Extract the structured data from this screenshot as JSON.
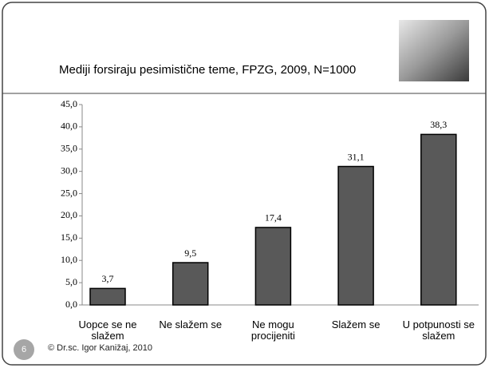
{
  "chart_data": {
    "type": "bar",
    "title": "Mediji forsiraju pesimistične teme, FPZG, 2009, N=1000",
    "categories": [
      "Uopce se ne slažem",
      "Ne slažem se",
      "Ne mogu procijeniti",
      "Slažem se",
      "U potpunosti se slažem"
    ],
    "values": [
      3.7,
      9.5,
      17.4,
      31.1,
      38.3
    ],
    "value_labels": [
      "3,7",
      "9,5",
      "17,4",
      "31,1",
      "38,3"
    ],
    "color": "#595959",
    "ylim": [
      0,
      45
    ],
    "yticks": [
      {
        "value": 0,
        "label": "0,0"
      },
      {
        "value": 5,
        "label": "5,0"
      },
      {
        "value": 10,
        "label": "10,0"
      },
      {
        "value": 15,
        "label": "15,0"
      },
      {
        "value": 20,
        "label": "20,0"
      },
      {
        "value": 25,
        "label": "25,0"
      },
      {
        "value": 30,
        "label": "30,0"
      },
      {
        "value": 35,
        "label": "35,0"
      },
      {
        "value": 40,
        "label": "40,0"
      },
      {
        "value": 45,
        "label": "45,0"
      }
    ],
    "grid": false
  },
  "slide_number": "6",
  "footer": "© Dr.sc. Igor Kanižaj, 2010"
}
